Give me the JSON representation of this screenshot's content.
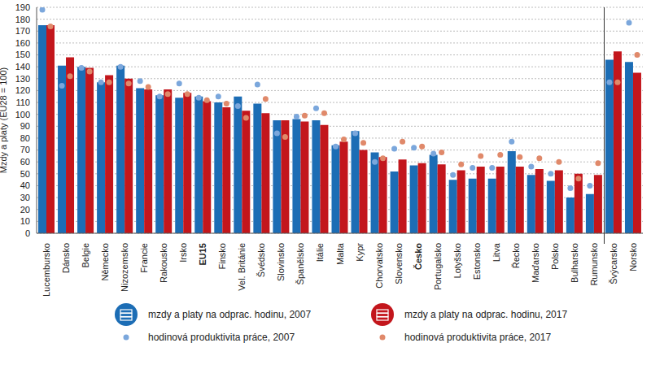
{
  "chart_data": {
    "type": "bar",
    "y_label": "Mzdy a platy (EU28 = 100)",
    "categories": [
      "Lucembursko",
      "Dánsko",
      "Belgie",
      "Německo",
      "Nizozemsko",
      "Francie",
      "Rakousko",
      "Irsko",
      "EU15",
      "Finsko",
      "Vel. Británie",
      "Švédsko",
      "Slovinsko",
      "Španělsko",
      "Itálie",
      "Malta",
      "Kypr",
      "Chorvatsko",
      "Slovensko",
      "Česko",
      "Portugalsko",
      "Lotyšsko",
      "Estonsko",
      "Litva",
      "Řecko",
      "Maďarsko",
      "Polsko",
      "Bulharsko",
      "Rumunsko",
      "Švýcarsko",
      "Norsko"
    ],
    "series": [
      {
        "name": "mzdy a platy na odprac. hodinu, 2007",
        "type": "bar",
        "color": "#1c6db5",
        "values": [
          175,
          141,
          140,
          127,
          141,
          122,
          116,
          114,
          115,
          110,
          115,
          109,
          95,
          96,
          95,
          74,
          86,
          68,
          52,
          57,
          66,
          45,
          46,
          46,
          69,
          49,
          44,
          30,
          33,
          146,
          144
        ]
      },
      {
        "name": "mzdy a platy na odprac. hodinu, 2017",
        "type": "bar",
        "color": "#c3161c",
        "values": [
          175,
          148,
          139,
          133,
          130,
          121,
          121,
          118,
          111,
          106,
          103,
          101,
          95,
          94,
          91,
          77,
          70,
          64,
          62,
          59,
          58,
          53,
          56,
          56,
          56,
          54,
          53,
          50,
          49,
          153,
          135
        ]
      },
      {
        "name": "hodinová produktivita práce, 2007",
        "type": "scatter",
        "color": "#7ba7dc",
        "values": [
          188,
          124,
          139,
          127,
          140,
          128,
          115,
          126,
          114,
          115,
          107,
          125,
          84,
          98,
          105,
          73,
          84,
          60,
          71,
          72,
          67,
          49,
          55,
          55,
          77,
          56,
          50,
          38,
          40,
          127,
          177
        ]
      },
      {
        "name": "hodinová produktivita práce, 2017",
        "type": "scatter",
        "color": "#e0896a",
        "values": [
          174,
          132,
          136,
          127,
          126,
          123,
          117,
          117,
          112,
          109,
          97,
          113,
          81,
          99,
          101,
          79,
          76,
          63,
          77,
          73,
          68,
          58,
          65,
          66,
          64,
          63,
          60,
          46,
          59,
          127,
          150
        ]
      }
    ],
    "ylim": [
      0,
      190
    ],
    "yticks": [
      0,
      10,
      20,
      30,
      40,
      50,
      60,
      70,
      80,
      90,
      100,
      110,
      120,
      130,
      140,
      150,
      160,
      170,
      180,
      190
    ],
    "grid": true,
    "legend": "bottom"
  }
}
